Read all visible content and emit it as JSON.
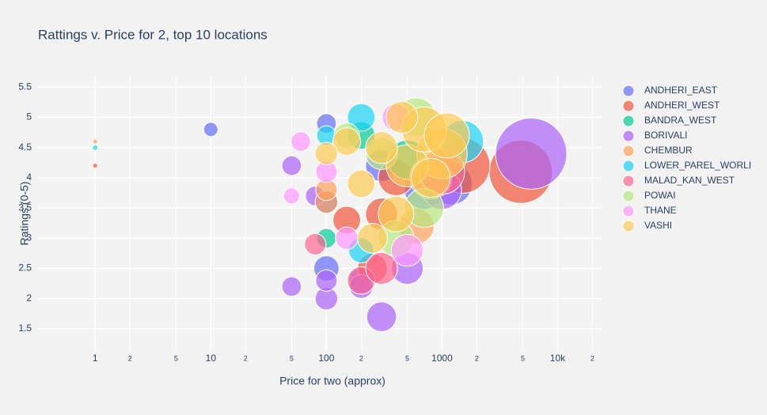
{
  "chart_data": {
    "type": "scatter",
    "title": "Rattings v. Price for 2, top 10 locations",
    "xlabel": "Price for two (approx)",
    "ylabel": "Ratings (0-5)",
    "xscale": "log",
    "grid": true,
    "legend": "right",
    "xlim": [
      0.32,
      24000
    ],
    "ylim": [
      1.12,
      5.7
    ],
    "xticks": [
      1,
      2,
      5,
      10,
      {
        "value": 20,
        "label": "2"
      },
      {
        "value": 50,
        "label": "5"
      },
      100,
      {
        "value": 200,
        "label": "2"
      },
      {
        "value": 500,
        "label": "5"
      },
      1000,
      {
        "value": 2000,
        "label": "2"
      },
      {
        "value": 5000,
        "label": "5"
      },
      {
        "value": 10000,
        "label": "10k"
      },
      {
        "value": 20000,
        "label": "2"
      }
    ],
    "yticks": [
      1.5,
      2,
      2.5,
      3,
      3.5,
      4,
      4.5,
      5,
      5.5
    ],
    "series": [
      {
        "name": "ANDHERI_EAST",
        "color": "#636efa",
        "x": [
          10,
          100,
          100,
          100,
          200,
          700,
          1200,
          300
        ],
        "values": [
          4.8,
          4.9,
          2.5,
          3.6,
          2.3,
          3.8,
          3.9,
          4.2
        ],
        "sizes": [
          80,
          150,
          250,
          200,
          250,
          600,
          700,
          400
        ]
      },
      {
        "name": "ANDHERI_WEST",
        "color": "#EF553B",
        "x": [
          1,
          4800,
          1500,
          300,
          150,
          400,
          250
        ],
        "values": [
          4.2,
          4.1,
          4.2,
          3.4,
          3.3,
          4.0,
          2.5
        ],
        "sizes": [
          10,
          1580,
          1200,
          400,
          300,
          500,
          350
        ]
      },
      {
        "name": "BANDRA_WEST",
        "color": "#00cc96",
        "x": [
          100,
          200,
          500
        ],
        "values": [
          3.0,
          4.7,
          4.3
        ],
        "sizes": [
          150,
          300,
          600
        ]
      },
      {
        "name": "BORIVALI",
        "color": "#ab63fa",
        "x": [
          5900,
          300,
          50,
          100,
          100,
          200,
          500,
          80,
          50,
          1000
        ],
        "values": [
          4.4,
          1.7,
          2.2,
          2.0,
          2.3,
          2.2,
          2.5,
          3.7,
          4.2,
          3.8
        ],
        "sizes": [
          2000,
          350,
          150,
          200,
          180,
          220,
          400,
          150,
          150,
          600
        ]
      },
      {
        "name": "CHEMBUR",
        "color": "#FFA15A",
        "x": [
          1,
          100,
          100,
          600,
          800
        ],
        "values": [
          4.6,
          3.6,
          3.8,
          3.2,
          4.0
        ],
        "sizes": [
          10,
          200,
          180,
          500,
          700
        ]
      },
      {
        "name": "LOWER_PAREL_WORLI",
        "color": "#19d3f3",
        "x": [
          1,
          200,
          200,
          1500,
          100
        ],
        "values": [
          4.5,
          5.0,
          2.8,
          4.6,
          4.7
        ],
        "sizes": [
          12,
          300,
          250,
          700,
          150
        ]
      },
      {
        "name": "MALAD_KAN_WEST",
        "color": "#FF6692",
        "x": [
          80,
          200,
          300,
          1000
        ],
        "values": [
          2.9,
          2.3,
          2.5,
          4.1
        ],
        "sizes": [
          180,
          300,
          400,
          800
        ]
      },
      {
        "name": "POWAI",
        "color": "#B6E880",
        "x": [
          600,
          150,
          400,
          700,
          300
        ],
        "values": [
          5.0,
          4.7,
          3.0,
          3.5,
          4.4
        ],
        "sizes": [
          600,
          250,
          500,
          600,
          400
        ]
      },
      {
        "name": "THANE",
        "color": "#FF97FF",
        "x": [
          50,
          60,
          150,
          500,
          400,
          100
        ],
        "values": [
          3.7,
          4.6,
          3.0,
          2.8,
          5.0,
          4.1
        ],
        "sizes": [
          100,
          150,
          200,
          400,
          300,
          180
        ]
      },
      {
        "name": "VASHI",
        "color": "#FECB52",
        "x": [
          1000,
          500,
          400,
          300,
          200,
          150,
          100,
          700,
          250,
          1100,
          800,
          450
        ],
        "values": [
          4.4,
          4.2,
          3.4,
          4.5,
          3.9,
          4.6,
          4.4,
          4.8,
          3.0,
          4.7,
          4.0,
          5.0
        ],
        "sizes": [
          1000,
          700,
          500,
          400,
          300,
          300,
          200,
          800,
          350,
          800,
          600,
          400
        ]
      }
    ]
  }
}
